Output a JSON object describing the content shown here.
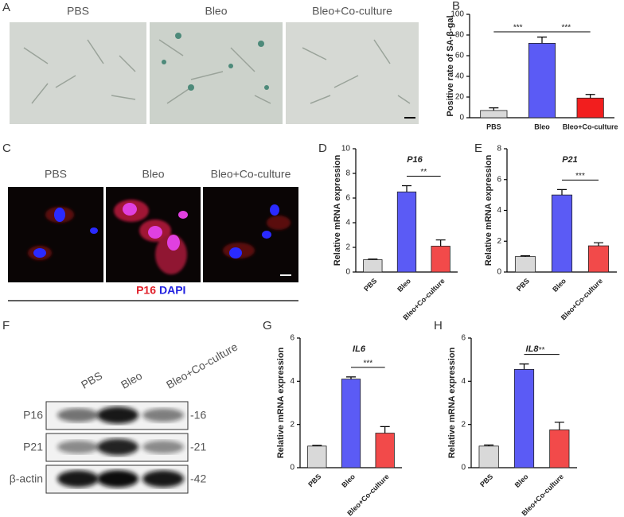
{
  "panels": {
    "A": {
      "letter": "A",
      "labels": [
        "PBS",
        "Bleo",
        "Bleo+Co-culture"
      ]
    },
    "C": {
      "letter": "C",
      "labels": [
        "PBS",
        "Bleo",
        "Bleo+Co-culture"
      ],
      "stain": [
        "P16",
        "DAPI"
      ]
    },
    "F": {
      "letter": "F",
      "lanes": [
        "PBS",
        "Bleo",
        "Bleo+Co-culture"
      ],
      "bands": [
        {
          "name": "P16",
          "kda": "-16"
        },
        {
          "name": "P21",
          "kda": "-21"
        },
        {
          "name": "β-actin",
          "kda": "-42"
        }
      ]
    }
  },
  "chart_data": [
    {
      "panel": "B",
      "type": "bar",
      "ylabel": "Positive rate of SA-β-gal",
      "categories": [
        "PBS",
        "Bleo",
        "Bleo+Co-culture"
      ],
      "values": [
        7,
        72,
        19
      ],
      "errors": [
        2.5,
        6,
        3.5
      ],
      "colors": [
        "#d9d9d9",
        "#5b5bf5",
        "#f21e1e"
      ],
      "ylim": [
        0,
        100
      ],
      "yticks": [
        0,
        20,
        40,
        60,
        80,
        100
      ],
      "annotations": [
        {
          "text": "***",
          "between": [
            "PBS",
            "Bleo"
          ]
        },
        {
          "text": "***",
          "between": [
            "Bleo",
            "Bleo+Co-culture"
          ]
        }
      ]
    },
    {
      "panel": "D",
      "type": "bar",
      "title": "P16",
      "ylabel": "Relative mRNA expression",
      "categories": [
        "PBS",
        "Bleo",
        "Bleo+Co-culture"
      ],
      "values": [
        1.0,
        6.5,
        2.1
      ],
      "errors": [
        0.05,
        0.5,
        0.5
      ],
      "colors": [
        "#d9d9d9",
        "#5b5bf5",
        "#f24a4a"
      ],
      "ylim": [
        0,
        10
      ],
      "yticks": [
        0,
        2,
        4,
        6,
        8,
        10
      ],
      "annotations": [
        {
          "text": "**",
          "between": [
            "Bleo",
            "Bleo+Co-culture"
          ]
        }
      ]
    },
    {
      "panel": "E",
      "type": "bar",
      "title": "P21",
      "ylabel": "Relative mRNA expression",
      "categories": [
        "PBS",
        "Bleo",
        "Bleo+Co-culture"
      ],
      "values": [
        1.0,
        5.0,
        1.7
      ],
      "errors": [
        0.05,
        0.35,
        0.2
      ],
      "colors": [
        "#d9d9d9",
        "#5b5bf5",
        "#f24a4a"
      ],
      "ylim": [
        0,
        8
      ],
      "yticks": [
        0,
        2,
        4,
        6,
        8
      ],
      "annotations": [
        {
          "text": "***",
          "between": [
            "Bleo",
            "Bleo+Co-culture"
          ]
        }
      ]
    },
    {
      "panel": "G",
      "type": "bar",
      "title": "IL6",
      "ylabel": "Relative mRNA expression",
      "categories": [
        "PBS",
        "Bleo",
        "Bleo+Co-culture"
      ],
      "values": [
        1.0,
        4.1,
        1.6
      ],
      "errors": [
        0.03,
        0.1,
        0.3
      ],
      "colors": [
        "#d9d9d9",
        "#5b5bf5",
        "#f24a4a"
      ],
      "ylim": [
        0,
        6
      ],
      "yticks": [
        0,
        2,
        4,
        6
      ],
      "annotations": [
        {
          "text": "***",
          "between": [
            "Bleo",
            "Bleo+Co-culture"
          ]
        }
      ]
    },
    {
      "panel": "H",
      "type": "bar",
      "title": "IL8",
      "ylabel": "Relative mRNA expression",
      "categories": [
        "PBS",
        "Bleo",
        "Bleo+Co-culture"
      ],
      "values": [
        1.0,
        4.55,
        1.75
      ],
      "errors": [
        0.05,
        0.25,
        0.35
      ],
      "colors": [
        "#d9d9d9",
        "#5b5bf5",
        "#f24a4a"
      ],
      "ylim": [
        0,
        6
      ],
      "yticks": [
        0,
        2,
        4,
        6
      ],
      "annotations": [
        {
          "text": "**",
          "between": [
            "Bleo",
            "Bleo+Co-culture"
          ]
        }
      ]
    }
  ]
}
